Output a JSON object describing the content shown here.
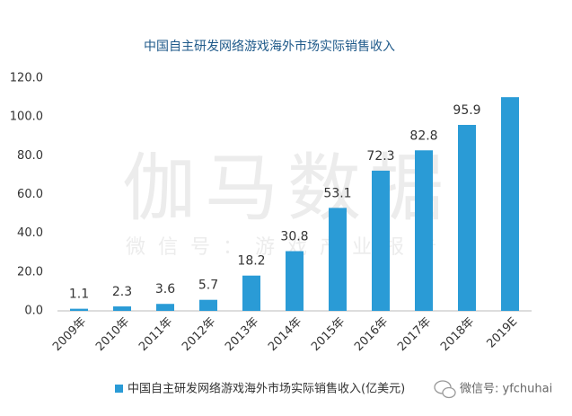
{
  "chart_data": {
    "type": "bar",
    "title": "中国自主研发网络游戏海外市场实际销售收入",
    "categories": [
      "2009年",
      "2010年",
      "2011年",
      "2012年",
      "2013年",
      "2014年",
      "2015年",
      "2016年",
      "2017年",
      "2018年",
      "2019E"
    ],
    "series": [
      {
        "name": "中国自主研发网络游戏海外市场实际销售收入(亿美元)",
        "color": "#2a9bd6",
        "values": [
          1.1,
          2.3,
          3.6,
          5.7,
          18.2,
          30.8,
          53.1,
          72.3,
          82.8,
          95.9,
          110.2
        ],
        "value_labels": [
          "1.1",
          "2.3",
          "3.6",
          "5.7",
          "18.2",
          "30.8",
          "53.1",
          "72.3",
          "82.8",
          "95.9",
          null
        ]
      }
    ],
    "ylim": [
      0,
      120
    ],
    "yticks": [
      {
        "value": 0,
        "label": "0.0"
      },
      {
        "value": 20,
        "label": "20.0"
      },
      {
        "value": 40,
        "label": "40.0"
      },
      {
        "value": 60,
        "label": "60.0"
      },
      {
        "value": 80,
        "label": "80.0"
      },
      {
        "value": 100,
        "label": "100.0"
      },
      {
        "value": 120,
        "label": "120.0"
      }
    ],
    "grid": false,
    "legend": "bottom",
    "watermark": "伽马数据",
    "watermark_subtitle": "微信号：游戏产业报告",
    "source_note": "微信号: yfchuhai"
  }
}
